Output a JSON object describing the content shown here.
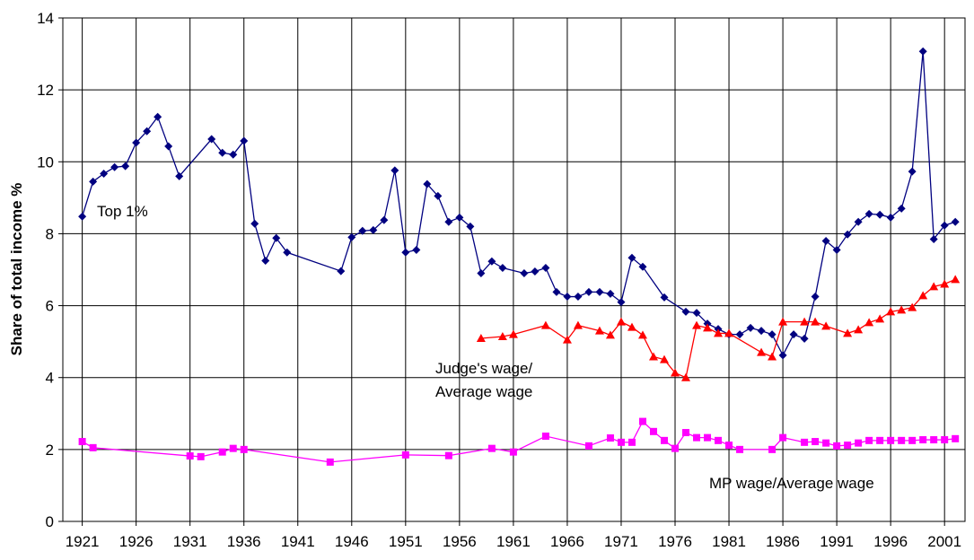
{
  "chart_data": {
    "type": "line",
    "y_label": "Share of total income %",
    "xlim": [
      1919.2,
      2002.9
    ],
    "xticks": [
      1921,
      1926,
      1931,
      1936,
      1941,
      1946,
      1951,
      1956,
      1961,
      1966,
      1971,
      1976,
      1981,
      1986,
      1991,
      1996,
      2001
    ],
    "ylim": [
      0,
      14
    ],
    "yticks": [
      0,
      2,
      4,
      6,
      8,
      10,
      12,
      14
    ],
    "grid": true,
    "series": [
      {
        "label": [
          "Top 1%"
        ],
        "color": "#000080",
        "marker": "diamond",
        "x": [
          1921,
          1922,
          1923,
          1924,
          1925,
          1926,
          1927,
          1928,
          1929,
          1930,
          1933,
          1934,
          1935,
          1936,
          1937,
          1938,
          1939,
          1940,
          1945,
          1946,
          1947,
          1948,
          1949,
          1950,
          1951,
          1952,
          1953,
          1954,
          1955,
          1956,
          1957,
          1958,
          1959,
          1960,
          1962,
          1963,
          1964,
          1965,
          1966,
          1967,
          1968,
          1969,
          1970,
          1971,
          1972,
          1973,
          1975,
          1977,
          1978,
          1979,
          1980,
          1981,
          1982,
          1983,
          1984,
          1985,
          1986,
          1987,
          1988,
          1989,
          1990,
          1991,
          1992,
          1993,
          1994,
          1995,
          1996,
          1997,
          1998,
          1999,
          2000,
          2001,
          2002
        ],
        "values": [
          8.48,
          9.45,
          9.67,
          9.85,
          9.88,
          10.53,
          10.85,
          11.25,
          10.43,
          9.6,
          10.63,
          10.25,
          10.2,
          10.58,
          8.28,
          7.25,
          7.88,
          7.48,
          6.96,
          7.9,
          8.08,
          8.1,
          8.38,
          9.76,
          7.48,
          7.55,
          9.38,
          9.05,
          8.33,
          8.45,
          8.2,
          6.9,
          7.23,
          7.05,
          6.9,
          6.95,
          7.05,
          6.38,
          6.25,
          6.25,
          6.38,
          6.38,
          6.33,
          6.1,
          7.33,
          7.08,
          6.23,
          5.83,
          5.8,
          5.5,
          5.35,
          5.2,
          5.2,
          5.38,
          5.3,
          5.2,
          4.62,
          5.2,
          5.08,
          6.25,
          7.8,
          7.55,
          7.98,
          8.33,
          8.55,
          8.53,
          8.45,
          8.7,
          9.73,
          13.07,
          7.85,
          8.23,
          8.33
        ]
      },
      {
        "label": [
          "Judge's wage/",
          "Average wage"
        ],
        "color": "#ff0000",
        "marker": "triangle",
        "x": [
          1958,
          1960,
          1961,
          1964,
          1966,
          1967,
          1969,
          1970,
          1971,
          1972,
          1973,
          1974,
          1975,
          1976,
          1977,
          1978,
          1979,
          1980,
          1981,
          1984,
          1985,
          1986,
          1988,
          1989,
          1990,
          1992,
          1993,
          1994,
          1995,
          1996,
          1997,
          1998,
          1999,
          2000,
          2001,
          2002
        ],
        "values": [
          5.09,
          5.14,
          5.2,
          5.45,
          5.05,
          5.45,
          5.3,
          5.18,
          5.55,
          5.4,
          5.18,
          4.58,
          4.5,
          4.13,
          4.0,
          5.45,
          5.38,
          5.23,
          5.23,
          4.7,
          4.58,
          5.55,
          5.55,
          5.55,
          5.43,
          5.23,
          5.33,
          5.53,
          5.63,
          5.83,
          5.88,
          5.95,
          6.28,
          6.53,
          6.6,
          6.73
        ]
      },
      {
        "label": [
          "MP wage/Average wage"
        ],
        "color": "#ff00ff",
        "marker": "square",
        "x": [
          1921,
          1922,
          1931,
          1932,
          1934,
          1935,
          1936,
          1944,
          1951,
          1955,
          1959,
          1961,
          1964,
          1968,
          1970,
          1971,
          1972,
          1973,
          1974,
          1975,
          1976,
          1977,
          1978,
          1979,
          1980,
          1981,
          1982,
          1985,
          1986,
          1988,
          1989,
          1990,
          1991,
          1992,
          1993,
          1994,
          1995,
          1996,
          1997,
          1998,
          1999,
          2000,
          2001,
          2002
        ],
        "values": [
          2.22,
          2.05,
          1.82,
          1.8,
          1.93,
          2.03,
          2.0,
          1.65,
          1.85,
          1.83,
          2.03,
          1.93,
          2.37,
          2.1,
          2.32,
          2.2,
          2.2,
          2.78,
          2.5,
          2.25,
          2.03,
          2.47,
          2.33,
          2.33,
          2.25,
          2.12,
          2.0,
          2.0,
          2.33,
          2.2,
          2.22,
          2.18,
          2.1,
          2.12,
          2.18,
          2.25,
          2.25,
          2.25,
          2.25,
          2.25,
          2.27,
          2.27,
          2.27,
          2.3
        ]
      }
    ]
  }
}
